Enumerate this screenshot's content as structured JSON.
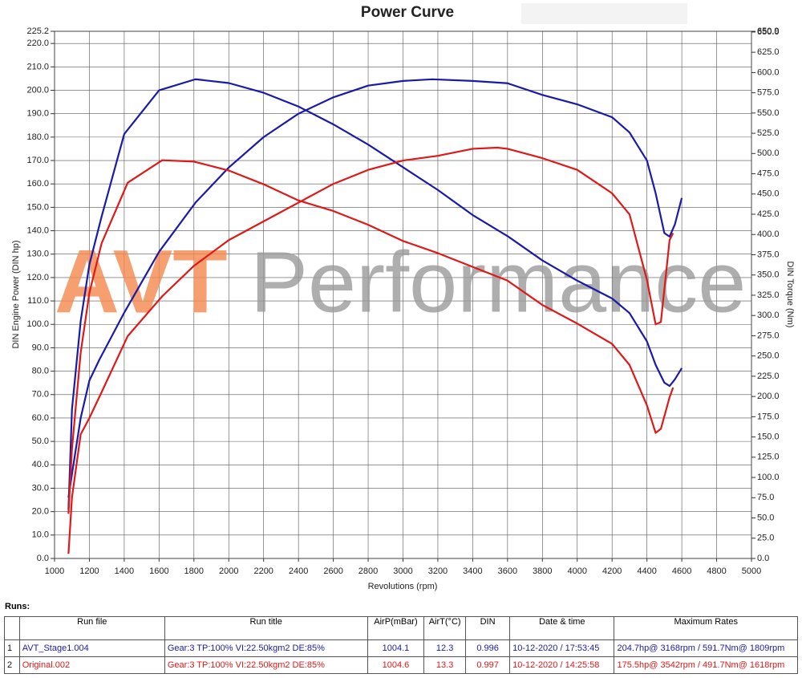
{
  "chart_data": {
    "type": "line",
    "title": "Power Curve",
    "watermark": [
      "AVT",
      "Performance"
    ],
    "xlabel": "Revolutions (rpm)",
    "ylabel": "DIN Engine Power (DIN hp)",
    "y2label": "DIN Torque (Nm)",
    "xlim": [
      1000,
      5000
    ],
    "xticks": [
      1000,
      1200,
      1400,
      1600,
      1800,
      2000,
      2200,
      2400,
      2600,
      2800,
      3000,
      3200,
      3400,
      3600,
      3800,
      4000,
      4200,
      4400,
      4600,
      4800,
      5000
    ],
    "ylim": [
      0,
      225.2
    ],
    "yticks": [
      {
        "value": 0,
        "label": "0.0"
      },
      {
        "value": 10,
        "label": "10.0"
      },
      {
        "value": 20,
        "label": "20.0"
      },
      {
        "value": 30,
        "label": "30.0"
      },
      {
        "value": 40,
        "label": "40.0"
      },
      {
        "value": 50,
        "label": "50.0"
      },
      {
        "value": 60,
        "label": "60.0"
      },
      {
        "value": 70,
        "label": "70.0"
      },
      {
        "value": 80,
        "label": "80.0"
      },
      {
        "value": 90,
        "label": "90.0"
      },
      {
        "value": 100,
        "label": "100.0"
      },
      {
        "value": 110,
        "label": "110.0"
      },
      {
        "value": 120,
        "label": "120.0"
      },
      {
        "value": 130,
        "label": "130.0"
      },
      {
        "value": 140,
        "label": "140.0"
      },
      {
        "value": 150,
        "label": "150.0"
      },
      {
        "value": 160,
        "label": "160.0"
      },
      {
        "value": 170,
        "label": "170.0"
      },
      {
        "value": 180,
        "label": "180.0"
      },
      {
        "value": 190,
        "label": "190.0"
      },
      {
        "value": 200,
        "label": "200.0"
      },
      {
        "value": 210,
        "label": "210.0"
      },
      {
        "value": 220,
        "label": "220.0"
      },
      225.2
    ],
    "y2lim": [
      0,
      650.9
    ],
    "y2ticks": [
      {
        "value": 0,
        "label": "0.0"
      },
      {
        "value": 25,
        "label": "25.0"
      },
      {
        "value": 50,
        "label": "50.0"
      },
      {
        "value": 75,
        "label": "75.0"
      },
      {
        "value": 100,
        "label": "100.0"
      },
      {
        "value": 125,
        "label": "125.0"
      },
      {
        "value": 150,
        "label": "150.0"
      },
      {
        "value": 175,
        "label": "175.0"
      },
      {
        "value": 200,
        "label": "200.0"
      },
      {
        "value": 225,
        "label": "225.0"
      },
      {
        "value": 250,
        "label": "250.0"
      },
      {
        "value": 275,
        "label": "275.0"
      },
      {
        "value": 300,
        "label": "300.0"
      },
      {
        "value": 325,
        "label": "325.0"
      },
      {
        "value": 350,
        "label": "350.0"
      },
      {
        "value": 375,
        "label": "375.0"
      },
      {
        "value": 400,
        "label": "400.0"
      },
      {
        "value": 425,
        "label": "425.0"
      },
      {
        "value": 450,
        "label": "450.0"
      },
      {
        "value": 475,
        "label": "475.0"
      },
      {
        "value": 500,
        "label": "500.0"
      },
      {
        "value": 525,
        "label": "525.0"
      },
      {
        "value": 550,
        "label": "550.0"
      },
      {
        "value": 575,
        "label": "575.0"
      },
      {
        "value": 600,
        "label": "600.0"
      },
      {
        "value": 625,
        "label": "625.0"
      },
      {
        "value": 650,
        "label": "650.0"
      },
      650.9
    ],
    "grid": true,
    "series": [
      {
        "color": "#1a1aaa",
        "axis": "y2",
        "x": [
          1080,
          1100,
          1150,
          1200,
          1270,
          1400,
          1600,
          1809,
          2000,
          2200,
          2400,
          2600,
          2800,
          3000,
          3200,
          3400,
          3600,
          3800,
          4000,
          4200,
          4300,
          4400,
          4450,
          4500,
          4530,
          4560,
          4600
        ],
        "values": [
          60,
          184,
          293,
          363,
          422,
          524,
          578,
          591.7,
          587,
          575,
          558,
          536,
          511,
          483,
          455,
          424,
          398,
          368,
          343,
          321,
          303,
          268,
          239,
          217,
          213,
          221,
          235
        ]
      },
      {
        "color": "#1a1aaa",
        "x": [
          1080,
          1100,
          1150,
          1200,
          1258,
          1400,
          1600,
          1809,
          2000,
          2200,
          2400,
          2600,
          2800,
          3000,
          3168,
          3400,
          3600,
          3800,
          4000,
          4200,
          4300,
          4400,
          4450,
          4500,
          4530,
          4560,
          4600
        ],
        "values": [
          26,
          36,
          60,
          76,
          85,
          105,
          131,
          152,
          167,
          180,
          190,
          197,
          202,
          204,
          204.7,
          204,
          203,
          198,
          194,
          188.5,
          182,
          170,
          156,
          139,
          137.5,
          142.6,
          154
        ]
      },
      {
        "color": "#e01818",
        "axis": "y2",
        "x": [
          1080,
          1100,
          1150,
          1200,
          1270,
          1420,
          1618,
          1800,
          2000,
          2200,
          2400,
          2600,
          2800,
          3000,
          3200,
          3400,
          3600,
          3800,
          4000,
          4200,
          4300,
          4400,
          4450,
          4480,
          4530,
          4550
        ],
        "values": [
          55,
          135,
          254,
          328,
          389,
          464,
          491.7,
          490,
          479,
          462,
          442,
          429,
          412,
          392,
          377,
          360,
          343,
          313,
          290,
          265,
          239,
          189,
          155,
          160,
          199,
          211
        ]
      },
      {
        "color": "#e01818",
        "x": [
          1080,
          1100,
          1150,
          1200,
          1270,
          1420,
          1618,
          1800,
          2000,
          2200,
          2400,
          2600,
          2800,
          3000,
          3200,
          3400,
          3542,
          3600,
          3800,
          4000,
          4200,
          4300,
          4400,
          4450,
          4480,
          4530,
          4550
        ],
        "values": [
          2,
          26,
          53,
          60,
          71,
          95,
          112,
          125,
          136,
          144,
          152,
          160,
          166,
          170,
          172,
          175,
          175.5,
          175,
          171,
          166,
          156,
          147,
          119,
          100,
          101,
          136,
          139
        ]
      }
    ]
  },
  "runs": {
    "title": "Runs:",
    "header": [
      "Run file",
      "Run title",
      "AirP(mBar)",
      "AirT(°C)",
      "DIN",
      "Date & time",
      "Maximum Rates"
    ],
    "rows": [
      [
        "1",
        "AVT_Stage1.004",
        "Gear:3 TP:100% VI:22.50kgm2 DE:85%",
        "1004.1",
        "12.3",
        "0.996",
        "10-12-2020 / 17:53:45",
        "204.7hp@ 3168rpm / 591.7Nm@ 1809rpm"
      ],
      [
        "2",
        "Original.002",
        "Gear:3 TP:100% VI:22.50kgm2 DE:85%",
        "1004.6",
        "13.3",
        "0.997",
        "10-12-2020 / 14:25:58",
        "175.5hp@ 3542rpm / 491.7Nm@ 1618rpm"
      ]
    ]
  }
}
